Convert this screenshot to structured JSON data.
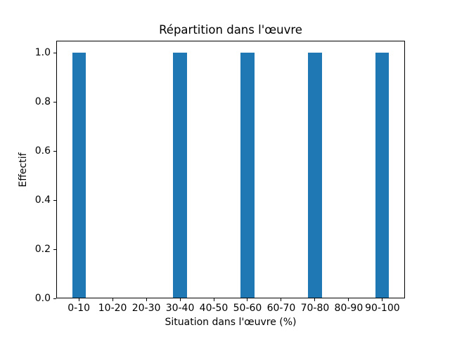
{
  "chart_data": {
    "type": "bar",
    "title": "Répartition dans l'œuvre",
    "xlabel": "Situation dans l'œuvre (%)",
    "ylabel": "Effectif",
    "categories": [
      "0-10",
      "10-20",
      "20-30",
      "30-40",
      "40-50",
      "50-60",
      "60-70",
      "70-80",
      "80-90",
      "90-100"
    ],
    "values": [
      1,
      0,
      0,
      1,
      0,
      1,
      0,
      1,
      0,
      1
    ],
    "x_tick_values": [
      5,
      15,
      25,
      35,
      45,
      55,
      65,
      75,
      85,
      95
    ],
    "bar_width_units": 4,
    "xlim": [
      -1.7,
      101.7
    ],
    "ylim": [
      0,
      1.05
    ],
    "yticks": [
      {
        "value": 0.0,
        "label": "0.0"
      },
      {
        "value": 0.2,
        "label": "0.2"
      },
      {
        "value": 0.4,
        "label": "0.4"
      },
      {
        "value": 0.6,
        "label": "0.6"
      },
      {
        "value": 0.8,
        "label": "0.8"
      },
      {
        "value": 1.0,
        "label": "1.0"
      }
    ],
    "grid": false,
    "legend": null,
    "bar_color": "#1f77b4",
    "axis_color": "#000000",
    "background_color": "#ffffff"
  }
}
